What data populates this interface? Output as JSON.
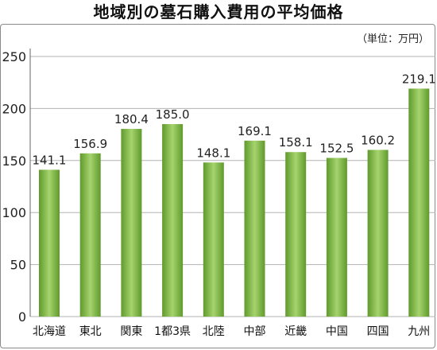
{
  "chart_data": {
    "type": "bar",
    "title": "地域別の墓石購入費用の平均価格",
    "unit_label": "（単位：万円）",
    "categories": [
      "北海道",
      "東北",
      "関東",
      "1都3県",
      "北陸",
      "中部",
      "近畿",
      "中国",
      "四国",
      "九州"
    ],
    "values": [
      141.1,
      156.9,
      180.4,
      185.0,
      148.1,
      169.1,
      158.1,
      152.5,
      160.2,
      219.1
    ],
    "value_labels": [
      "141.1",
      "156.9",
      "180.4",
      "185.0",
      "148.1",
      "169.1",
      "158.1",
      "152.5",
      "160.2",
      "219.1"
    ],
    "yticks": [
      "0",
      "50",
      "100",
      "150",
      "200",
      "250"
    ],
    "ylim": [
      0,
      250
    ],
    "grid": true,
    "bar_color_light": "#a6d36e",
    "bar_color_dark": "#5f9a2c",
    "grid_color": "#b3b3b3"
  }
}
